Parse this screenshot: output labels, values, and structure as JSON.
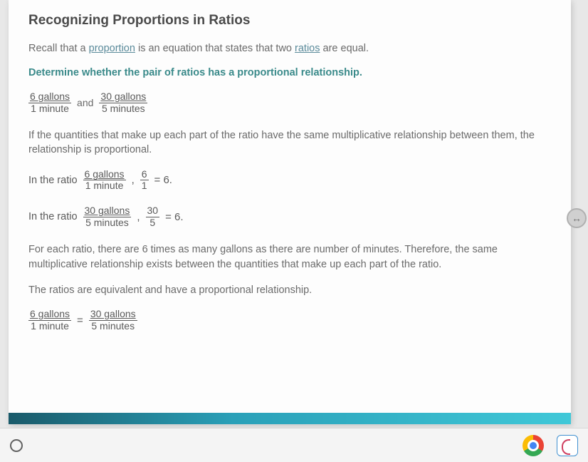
{
  "title": "Recognizing Proportions in Ratios",
  "intro": {
    "pre": "Recall that a ",
    "link1": "proportion",
    "mid": " is an equation that states that two ",
    "link2": "ratios",
    "post": " are equal."
  },
  "instruction": "Determine whether the pair of ratios has a proportional relationship.",
  "ratios_given": {
    "r1": {
      "num": "6 gallons",
      "den": "1 minute"
    },
    "and": "and",
    "r2": {
      "num": "30 gallons",
      "den": "5 minutes"
    }
  },
  "explain1": "If the quantities that make up each part of the ratio have the same multiplicative relationship between them, the relationship is proportional.",
  "ratio_eval": [
    {
      "lead": "In the ratio",
      "frac_units": {
        "num": "6 gallons",
        "den": "1 minute"
      },
      "comma": ",",
      "frac_plain": {
        "num": "6",
        "den": "1"
      },
      "result": "= 6."
    },
    {
      "lead": "In the ratio",
      "frac_units": {
        "num": "30 gallons",
        "den": "5  minutes"
      },
      "comma": ",",
      "frac_plain": {
        "num": "30",
        "den": "5"
      },
      "result": "= 6."
    }
  ],
  "explain2": "For each ratio, there are 6 times as many gallons as there are number of minutes. Therefore, the same multiplicative relationship exists between the quantities that make up each part of the ratio.",
  "explain3": "The ratios are equivalent and have a proportional relationship.",
  "ratios_equal": {
    "r1": {
      "num": "6 gallons",
      "den": "1 minute"
    },
    "eq": "=",
    "r2": {
      "num": "30 gallons",
      "den": "5 minutes"
    }
  },
  "side_btn_glyph": "↔",
  "colors": {
    "page_bg": "#fdfdfd",
    "body_bg": "#e8e8e8",
    "title": "#4a4a4a",
    "text": "#6a6a6a",
    "instruct": "#3a8a8a",
    "link": "#5a8a9a",
    "bar_start": "#1a5a6a",
    "bar_end": "#40c8d8"
  }
}
